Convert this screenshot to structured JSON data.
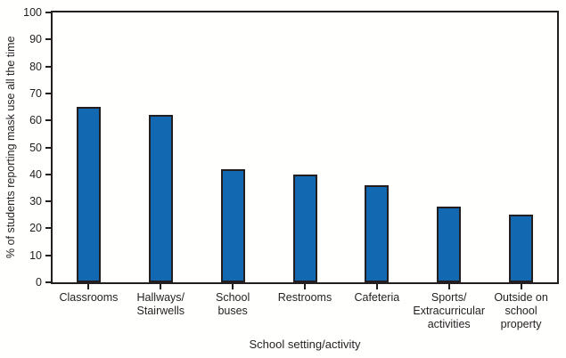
{
  "chart_data": {
    "type": "bar",
    "title": "",
    "categories": [
      "Classrooms",
      "Hallways/\nStairwells",
      "School\nbuses",
      "Restrooms",
      "Cafeteria",
      "Sports/\nExtracurricular\nactivities",
      "Outside on\nschool\nproperty"
    ],
    "values": [
      65,
      62,
      42,
      40,
      36,
      28,
      25
    ],
    "xlabel": "School setting/activity",
    "ylabel": "% of students reporting mask use all the time",
    "ylim": [
      0,
      100
    ],
    "yticks": [
      0,
      10,
      20,
      30,
      40,
      50,
      60,
      70,
      80,
      90,
      100
    ],
    "grid": false,
    "legend_position": "none",
    "bar_color": "#1268b1",
    "bar_border_color": "#231f20",
    "axis_color": "#231f20",
    "text_color": "#231f20",
    "background_color": "#fffffe"
  }
}
